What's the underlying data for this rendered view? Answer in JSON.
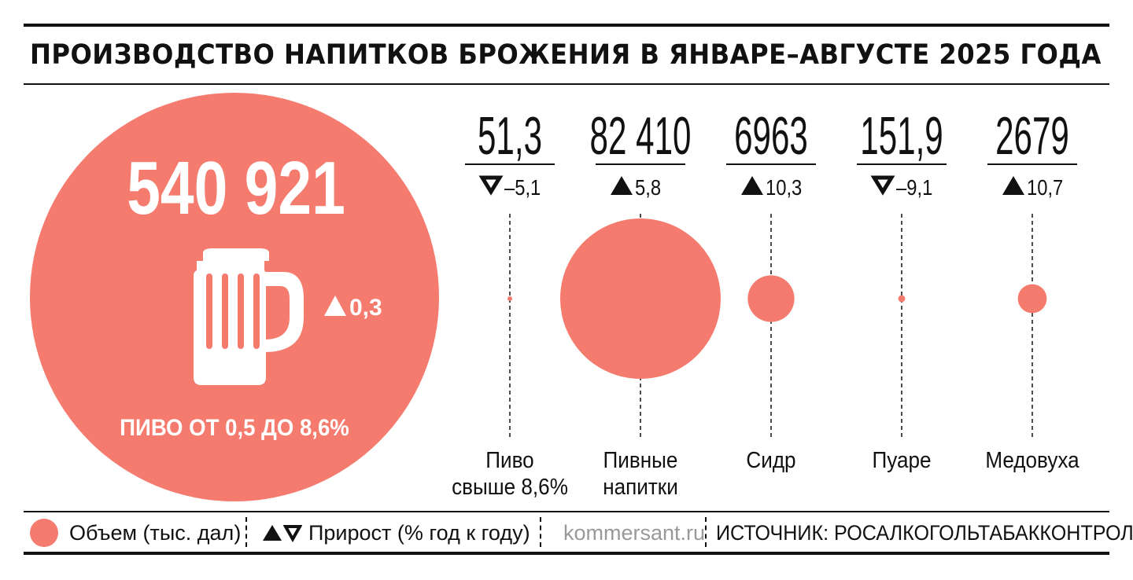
{
  "title": "ПРОИЗВОДСТВО НАПИТКОВ БРОЖЕНИЯ В ЯНВАРЕ–АВГУСТЕ 2025 ГОДА",
  "colors": {
    "accent": "#f47b6d",
    "text": "#111111",
    "muted": "#999999",
    "white": "#ffffff"
  },
  "icons": {
    "main": "beer-mug-icon",
    "up": "triangle-up-icon",
    "down": "triangle-down-outline-icon"
  },
  "chart_data": {
    "type": "bubble",
    "main": {
      "label": "ПИВО ОТ 0,5 ДО 8,6%",
      "value_label": "540 921",
      "value": 540921,
      "growth_label": "0,3",
      "growth": 0.3,
      "direction": "up"
    },
    "items": [
      {
        "label": [
          "Пиво",
          "свыше 8,6%"
        ],
        "value_label": "51,3",
        "value": 51.3,
        "growth_label": "–5,1",
        "growth": -5.1,
        "direction": "down"
      },
      {
        "label": [
          "Пивные",
          "напитки"
        ],
        "value_label": "82  410",
        "value": 82410,
        "growth_label": "5,8",
        "growth": 5.8,
        "direction": "up"
      },
      {
        "label": [
          "Сидр"
        ],
        "value_label": "6963",
        "value": 6963,
        "growth_label": "10,3",
        "growth": 10.3,
        "direction": "up"
      },
      {
        "label": [
          "Пуаре"
        ],
        "value_label": "151,9",
        "value": 151.9,
        "growth_label": "–9,1",
        "growth": -9.1,
        "direction": "down"
      },
      {
        "label": [
          "Медовуха"
        ],
        "value_label": "2679",
        "value": 2679,
        "growth_label": "10,7",
        "growth": 10.7,
        "direction": "up"
      }
    ]
  },
  "legend": {
    "volume": "Объем (тыс. дал)",
    "growth": "Прирост (% год к году)"
  },
  "footer": {
    "site": "kommersant.ru",
    "source": "ИСТОЧНИК: РОСАЛКОГОЛЬТАБАККОНТРОЛЬ."
  }
}
